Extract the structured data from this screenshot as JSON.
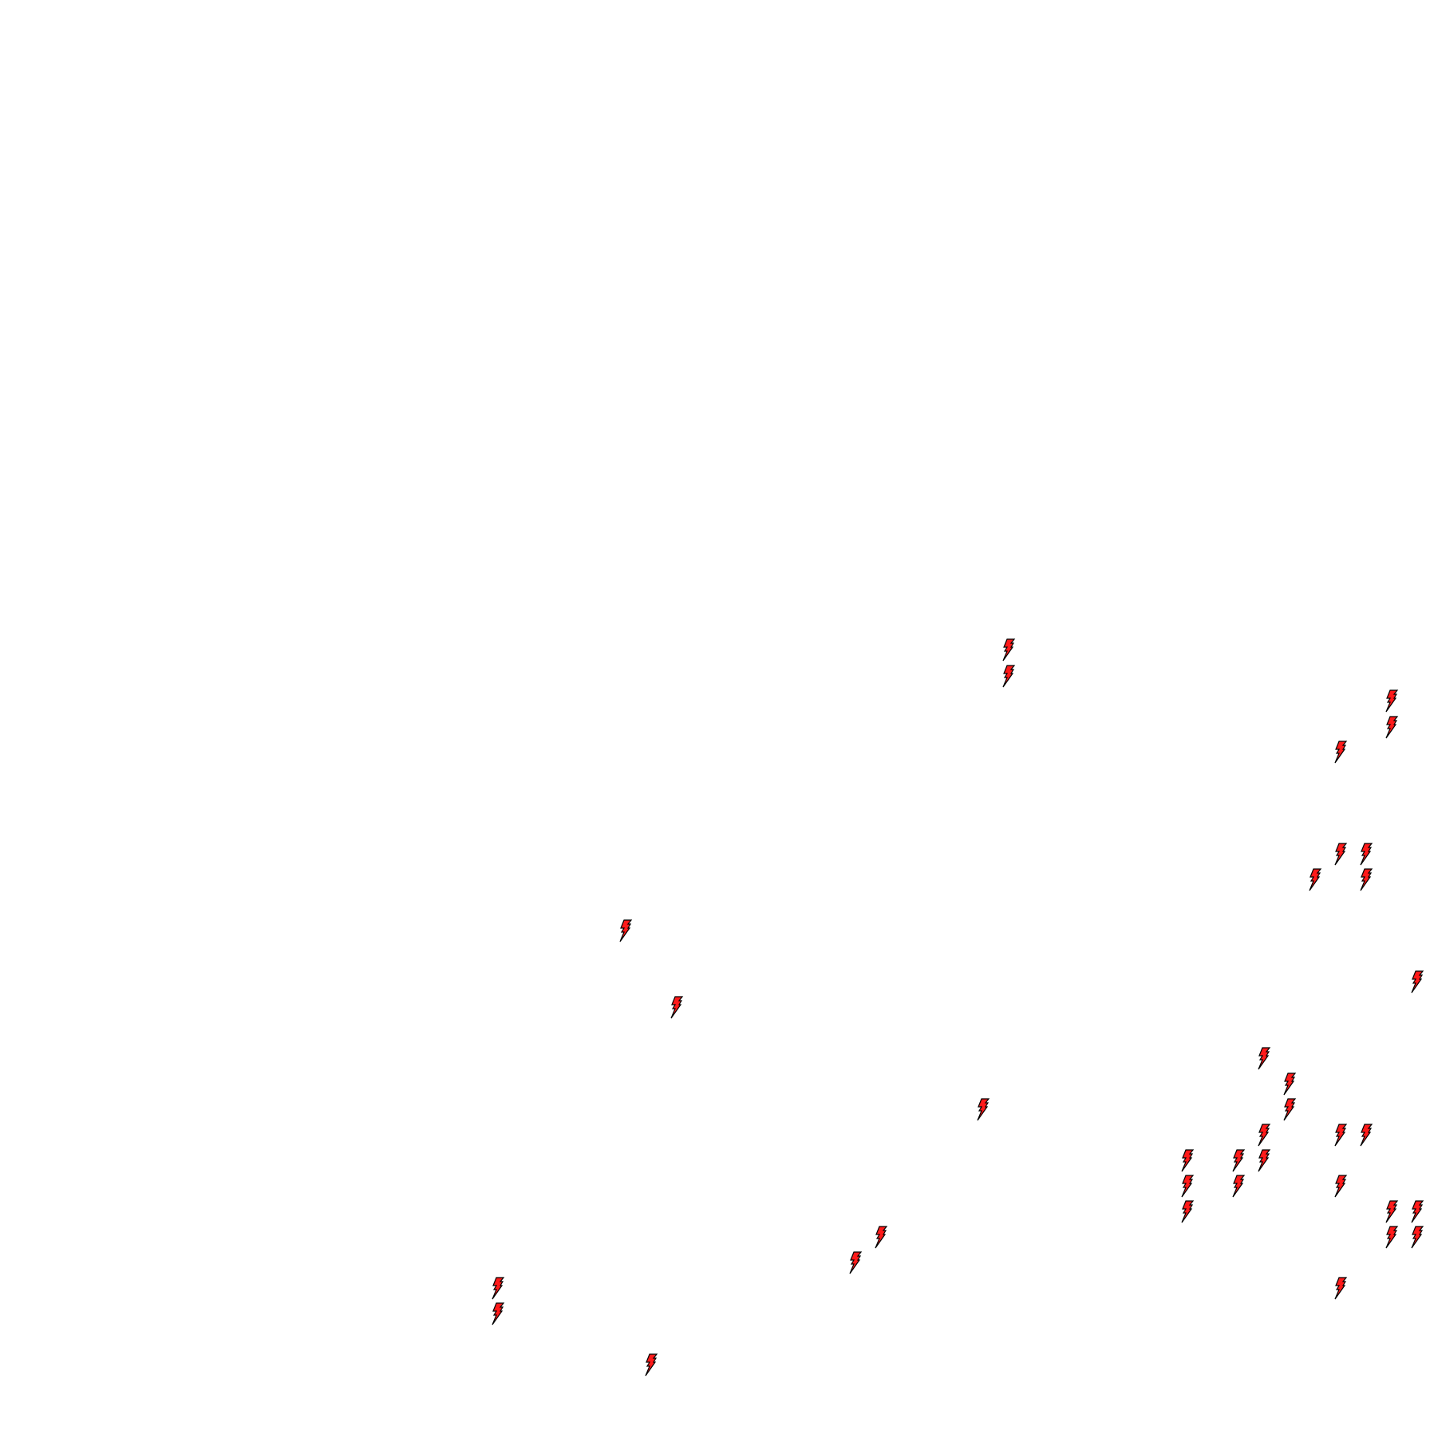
{
  "map": {
    "background_color": "#ffffff",
    "marker": {
      "icon": "lightning-bolt-icon",
      "fill_color": "#ff1a1a",
      "stroke_color": "#000000",
      "count": 36
    }
  }
}
